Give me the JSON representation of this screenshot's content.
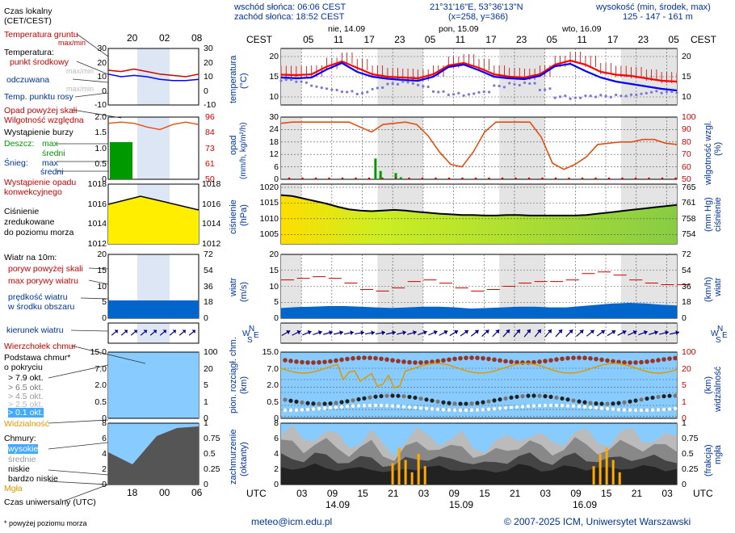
{
  "header": {
    "sunrise": "wschód słońca: 06:06 CEST",
    "sunset": "zachód słońca: 18:52 CEST",
    "coords": "21°31'16\"E, 53°36'13\"N",
    "grid": "(x=258,  y=366)",
    "height_title": "wysokość (min, środek, max)",
    "heights": "125 - 147 - 161 m",
    "cest": "CEST",
    "utc": "UTC",
    "days": [
      "nie, 14.09",
      "pon, 15.09",
      "wto, 16.09"
    ],
    "date_labels": [
      "14.09",
      "15.09",
      "16.09"
    ],
    "cest_hours": [
      "05",
      "11",
      "17",
      "23",
      "05",
      "11",
      "17",
      "23",
      "05",
      "11",
      "17",
      "23",
      "05"
    ],
    "utc_hours": [
      "03",
      "09",
      "15",
      "21",
      "03",
      "09",
      "15",
      "21",
      "03",
      "09",
      "15",
      "21",
      "03"
    ],
    "legend_top_hours": [
      "20",
      "02",
      "08"
    ],
    "legend_bottom_hours": [
      "18",
      "00",
      "06"
    ]
  },
  "footer": {
    "note": "* powyżej poziomu morza",
    "email": "meteo@icm.edu.pl",
    "copyright": "© 2007-2025 ICM, Uniwersytet Warszawski"
  },
  "legend": {
    "local_time": "Czas lokalny",
    "local_time2": "(CET/CEST)",
    "ground_temp": "Temperatura gruntu",
    "maxmin": "max/min",
    "temperature": "Temperatura:",
    "mid_point": "punkt środkowy",
    "max_min": "max/min",
    "perceived": "odczuwana",
    "max_min2": "max/min",
    "dew_point": "Temp. punktu rosy",
    "precip_above": "Opad powyżej skali",
    "rel_humidity": "Wilgotność względna",
    "storm": "Wystąpienie burzy",
    "rain": "Deszcz:",
    "snow": "Śnieg:",
    "max": "max",
    "mid": "średni",
    "max2": "max",
    "mid2": "średni",
    "conv": "Wystąpienie opadu",
    "conv2": "konwekcyjnego",
    "pressure": "Ciśnienie",
    "pressure2": "zredukowane",
    "pressure3": "do poziomu morza",
    "wind10": "Wiatr na 10m:",
    "gust_above": "poryw powyżej skali",
    "max_gusts": "max porywy wiatru",
    "wind_speed": "prędkość wiatru",
    "wind_speed2": "w środku obszaru",
    "wind_dir": "kierunek wiatru",
    "cloud_top": "Wierzchołek chmur",
    "cloud_base": "Podstawa chmur*",
    "cloud_base2": "o pokryciu",
    "okt79": "> 7.9 okt.",
    "okt65": "> 6.5 okt.",
    "okt45": "> 4.5 okt.",
    "okt25": "> 2.5 okt.",
    "okt01": "> 0.1 okt.",
    "visibility": "Widzialność",
    "clouds": "Chmury:",
    "high": "wysokie",
    "medium": "średnie",
    "low": "niskie",
    "very_low": "bardzo niskie",
    "fog": "Mgła",
    "utc_time": "Czas uniwersalny (UTC)"
  },
  "legend_axes": {
    "temp_left": [
      "30",
      "20",
      "10",
      "0",
      "-10"
    ],
    "temp_right": [
      "30",
      "20",
      "10",
      "0",
      "-10"
    ],
    "precip_left": [
      "2.0",
      "1.5",
      "1.0",
      "0.5",
      "0"
    ],
    "precip_right": [
      "96",
      "84",
      "73",
      "61",
      "50"
    ],
    "pres_left": [
      "1018",
      "1016",
      "1014",
      "1012"
    ],
    "pres_right": [
      "1018",
      "1016",
      "1014",
      "1012"
    ],
    "wind_left": [
      "20",
      "15",
      "10",
      "5",
      "0"
    ],
    "wind_right": [
      "72",
      "54",
      "36",
      "18",
      "0"
    ],
    "cb_left": [
      "15.0",
      "7.0",
      "2.0",
      "0.5",
      "0"
    ],
    "cb_right": [
      "100",
      "20",
      "5",
      "1",
      "0"
    ],
    "cl_left": [
      "8",
      "6",
      "4",
      "2",
      "0"
    ],
    "cl_right": [
      "1",
      "0.75",
      "0.5",
      "0.25",
      "0"
    ]
  },
  "axes": {
    "temp_label": "temperatura",
    "temp_unit": "(°C)",
    "precip_label": "opad",
    "precip_unit": "(mm/h, kg/m²/h)",
    "hum_label": "wilgotność wzgl.",
    "hum_unit": "(%)",
    "pres_label": "ciśnienie",
    "pres_unit": "(hPa)",
    "pres_unit_r": "(mm Hg)",
    "wind_label": "wiatr",
    "wind_unit": "(m/s)",
    "wind_unit_r": "(km/h)",
    "cloud_label": "pion. rozciągł. chm.",
    "cloud_unit": "(km)",
    "vis_label": "widzialność",
    "vis_unit": "(km)",
    "cover_label": "zachmurzenie",
    "cover_unit": "(oktanty)",
    "fog_label": "mgła",
    "fog_unit": "(frakcja)",
    "compass": [
      "N",
      "W",
      "E",
      "S"
    ]
  },
  "colors": {
    "temp_max": "#ff0000",
    "temp_mid": "#0000ff",
    "dew": "#7777dd",
    "humidity": "#e05010",
    "rain": "#009900",
    "pressure_fill": "#aadd00",
    "wind": "#0066cc",
    "gust": "#cc0000",
    "sky": "#88ccff"
  },
  "chart_data": {
    "type": "line",
    "hours_utc": [
      0,
      3,
      6,
      9,
      12,
      15,
      18,
      21,
      24,
      27,
      30,
      33,
      36,
      39,
      42,
      45,
      48,
      51,
      54,
      57,
      60,
      63,
      66,
      69,
      72,
      75,
      78
    ],
    "temp_axis": {
      "ticks": [
        20,
        15,
        10
      ],
      "ticks_right": [
        20,
        15,
        10
      ],
      "ylim": [
        8,
        22
      ]
    },
    "temp_max": [
      15.5,
      15.4,
      15.6,
      17.5,
      18.8,
      17.2,
      15.6,
      15.0,
      14.8,
      14.6,
      15.6,
      17.8,
      18.4,
      17.2,
      15.6,
      15.0,
      14.8,
      15.6,
      18.0,
      19.0,
      18.0,
      16.2,
      15.5,
      15.2,
      14.6,
      14.0,
      13.8
    ],
    "temp_mid": [
      14.8,
      14.6,
      14.8,
      16.8,
      18.4,
      16.2,
      15.0,
      14.5,
      14.2,
      14.0,
      15.0,
      17.4,
      18.0,
      16.6,
      15.0,
      14.6,
      14.4,
      15.2,
      17.6,
      18.2,
      16.4,
      14.8,
      13.8,
      13.2,
      12.6,
      12.0,
      11.6
    ],
    "temp_dew": [
      14.0,
      13.5,
      12.5,
      12.0,
      11.5,
      11.0,
      12.0,
      13.0,
      13.5,
      12.8,
      11.5,
      10.8,
      10.5,
      11.0,
      12.5,
      13.2,
      13.6,
      12.0,
      10.0,
      9.5,
      10.0,
      10.2,
      10.5,
      10.8,
      11.2,
      11.0,
      10.8
    ],
    "precip_axis": {
      "ticks": [
        30,
        24,
        18,
        12,
        6,
        0
      ],
      "ylim": [
        0,
        30
      ]
    },
    "humidity_axis": {
      "ticks": [
        100,
        90,
        80,
        70,
        60,
        50
      ],
      "ylim": [
        50,
        100
      ]
    },
    "humidity": [
      95,
      96,
      96,
      96,
      96,
      96,
      96,
      92,
      88,
      94,
      95,
      96,
      94,
      85,
      72,
      62,
      60,
      72,
      88,
      96,
      96,
      96,
      96,
      84,
      63,
      58,
      62,
      68,
      78,
      79,
      80,
      80,
      82,
      82,
      79,
      78
    ],
    "rain": [
      0,
      0,
      0,
      0,
      0,
      0,
      0,
      0,
      0,
      0,
      0,
      0,
      10,
      4,
      0,
      0,
      3,
      1,
      0,
      0,
      0,
      0,
      0,
      0,
      0,
      0,
      0,
      0,
      0,
      0,
      0,
      0,
      0,
      0,
      0,
      0,
      0,
      0,
      0,
      0,
      0,
      0,
      0,
      0,
      0,
      0,
      0,
      0,
      0,
      0,
      0,
      0,
      0,
      0,
      0,
      0,
      0,
      0,
      0,
      0,
      0,
      0,
      0,
      0,
      0,
      0,
      0,
      0,
      0,
      0,
      0,
      0,
      0,
      0,
      0,
      0,
      0,
      0
    ],
    "pressure_axis": {
      "ticks": [
        1020,
        1015,
        1010,
        1005
      ],
      "ticks_right": [
        765,
        761,
        758,
        754
      ],
      "ylim": [
        1002,
        1021
      ]
    },
    "pressure": [
      1017.5,
      1017.2,
      1016.4,
      1015.6,
      1014.8,
      1013.8,
      1013.0,
      1012.6,
      1012.4,
      1012.6,
      1012.8,
      1012.6,
      1012.2,
      1011.9,
      1011.6,
      1011.4,
      1011.2,
      1011.2,
      1011.0,
      1011.0,
      1011.2,
      1011.2,
      1011.0,
      1011.0,
      1011.0,
      1011.0,
      1011.0,
      1011.2,
      1011.6,
      1012.0,
      1012.4,
      1012.8,
      1013.2,
      1013.6,
      1014.0,
      1014.4
    ],
    "wind_axis": {
      "ticks": [
        20,
        15,
        10,
        5,
        0
      ],
      "ticks_right": [
        72,
        54,
        36,
        18,
        0
      ],
      "ylim": [
        0,
        20
      ]
    },
    "wind_speed": [
      3.2,
      3.5,
      3.6,
      3.8,
      3.8,
      3.6,
      3.4,
      3.2,
      3.4,
      3.6,
      3.6,
      3.4,
      3.0,
      3.2,
      3.4,
      3.6,
      3.6,
      3.4,
      3.4,
      3.8,
      4.2,
      4.6,
      4.8,
      4.6,
      4.2,
      4.0
    ],
    "wind_gust": [
      12.0,
      12.5,
      13.0,
      12.5,
      11.0,
      9.0,
      8.5,
      9.5,
      11.5,
      12.0,
      11.0,
      9.5,
      8.5,
      9.0,
      10.0,
      11.0,
      11.5,
      11.5,
      12.0,
      14.0,
      14.5,
      13.5,
      12.0,
      11.0,
      10.5,
      10.5
    ],
    "cloud_axis": {
      "ticks": [
        "15.0",
        "7.0",
        "2.0",
        "0.5",
        "0"
      ],
      "ticks_right": [
        "100",
        "20",
        "5",
        "1",
        "0"
      ]
    },
    "cover_axis": {
      "ticks": [
        "8",
        "6",
        "4",
        "2",
        "0"
      ],
      "ticks_right": [
        "1",
        "0.75",
        "0.5",
        "0.25",
        "0"
      ]
    },
    "total_cover": [
      7.5,
      7.8,
      7.2,
      7.9,
      7.6,
      7.0,
      6.4,
      6.8,
      7.4,
      6.0,
      5.2,
      6.6,
      7.5,
      7.8,
      7.1,
      6.5,
      7.2,
      6.2,
      5.5,
      6.0,
      7.0,
      7.9,
      7.6,
      6.8,
      6.5,
      7.2,
      7.8,
      7.4,
      7.0,
      6.6,
      7.3,
      7.9,
      7.5,
      7.1,
      6.8,
      7.2
    ],
    "fog": [
      0,
      0,
      0,
      0,
      0,
      0,
      0,
      0,
      0,
      0,
      0,
      0,
      0,
      0,
      0,
      0,
      0,
      0.35,
      0.6,
      0.4,
      0.2,
      0.5,
      0.3,
      0,
      0,
      0,
      0,
      0,
      0,
      0,
      0,
      0,
      0,
      0,
      0,
      0,
      0,
      0,
      0,
      0,
      0,
      0,
      0,
      0,
      0,
      0,
      0,
      0,
      0.3,
      0.5,
      0.6,
      0.4,
      0.2,
      0,
      0,
      0,
      0,
      0,
      0,
      0,
      0
    ]
  }
}
